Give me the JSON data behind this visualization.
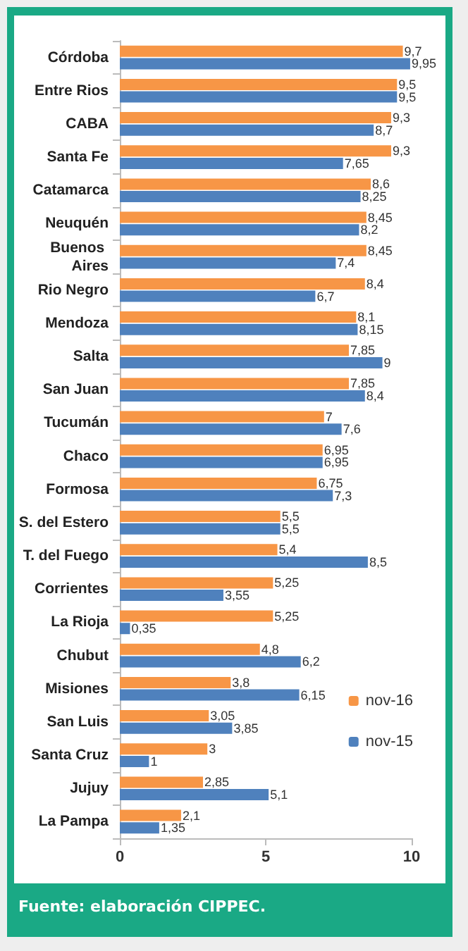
{
  "chart_data": {
    "type": "bar",
    "orientation": "horizontal",
    "categories": [
      "Córdoba",
      "Entre Rios",
      "CABA",
      "Santa Fe",
      "Catamarca",
      "Neuquén",
      "Buenos Aires",
      "Rio Negro",
      "Mendoza",
      "Salta",
      "San Juan",
      "Tucumán",
      "Chaco",
      "Formosa",
      "S. del Estero",
      "T. del Fuego",
      "Corrientes",
      "La Rioja",
      "Chubut",
      "Misiones",
      "San Luis",
      "Santa Cruz",
      "Jujuy",
      "La Pampa"
    ],
    "series": [
      {
        "name": "nov-16",
        "color": "#f79646",
        "values": [
          9.7,
          9.5,
          9.3,
          9.3,
          8.6,
          8.45,
          8.45,
          8.4,
          8.1,
          7.85,
          7.85,
          7,
          6.95,
          6.75,
          5.5,
          5.4,
          5.25,
          5.25,
          4.8,
          3.8,
          3.05,
          3,
          2.85,
          2.1
        ],
        "value_labels": [
          "9,7",
          "9,5",
          "9,3",
          "9,3",
          "8,6",
          "8,45",
          "8,45",
          "8,4",
          "8,1",
          "7,85",
          "7,85",
          "7",
          "6,95",
          "6,75",
          "5,5",
          "5,4",
          "5,25",
          "5,25",
          "4,8",
          "3,8",
          "3,05",
          "3",
          "2,85",
          "2,1"
        ]
      },
      {
        "name": "nov-15",
        "color": "#4f81bd",
        "values": [
          9.95,
          9.5,
          8.7,
          7.65,
          8.25,
          8.2,
          7.4,
          6.7,
          8.15,
          9,
          8.4,
          7.6,
          6.95,
          7.3,
          5.5,
          8.5,
          3.55,
          0.35,
          6.2,
          6.15,
          3.85,
          1,
          5.1,
          1.35
        ],
        "value_labels": [
          "9,95",
          "9,5",
          "8,7",
          "7,65",
          "8,25",
          "8,2",
          "7,4",
          "6,7",
          "8,15",
          "9",
          "8,4",
          "7,6",
          "6,95",
          "7,3",
          "5,5",
          "8,5",
          "3,55",
          "0,35",
          "6,2",
          "6,15",
          "3,85",
          "1",
          "5,1",
          "1,35"
        ]
      }
    ],
    "xlim": [
      0,
      10
    ],
    "xticks": [
      0,
      5,
      10
    ],
    "grid": false,
    "legend": "bottom right",
    "annotations": [
      "Fuente: elaboración CIPPEC."
    ]
  }
}
